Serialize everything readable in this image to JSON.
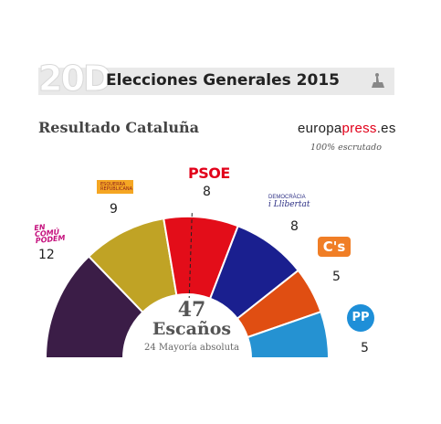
{
  "header": {
    "logo_text": "20D",
    "title": "Elecciones Generales 2015",
    "icon": "hemicycle-seat-icon"
  },
  "subtitle": "Resultado Cataluña",
  "brand": {
    "prefix": "europa",
    "accent": "press",
    "suffix": ".es",
    "accent_color": "#e2001a"
  },
  "scrutiny": "100% escrutado",
  "center": {
    "total": "47",
    "label": "Escaños",
    "majority": "24 Mayoría absoluta"
  },
  "logos": {
    "psoe": "PSOE",
    "comu": [
      "EN",
      "COMÚ",
      "PODEM"
    ],
    "erc_text": "ESQUERRA REPUBLICANA",
    "dl": [
      "DEMOCRÀCIA",
      "i Llibertat"
    ],
    "cs": "C's",
    "pp": "PP"
  },
  "chart_data": {
    "type": "pie",
    "title": "Elecciones Generales 2015",
    "subtitle": "Resultado Cataluña",
    "layout": "hemicycle",
    "total_seats": 47,
    "majority": 24,
    "series": [
      {
        "name": "En Comú Podem",
        "value": 12,
        "color": "#3b1d47"
      },
      {
        "name": "ERC",
        "value": 9,
        "color": "#c0a325"
      },
      {
        "name": "PSOE",
        "value": 8,
        "color": "#e30d19"
      },
      {
        "name": "Democràcia i Llibertat",
        "value": 8,
        "color": "#1a1f8f"
      },
      {
        "name": "C's",
        "value": 5,
        "color": "#e04e12"
      },
      {
        "name": "PP",
        "value": 5,
        "color": "#2592d2"
      }
    ]
  }
}
